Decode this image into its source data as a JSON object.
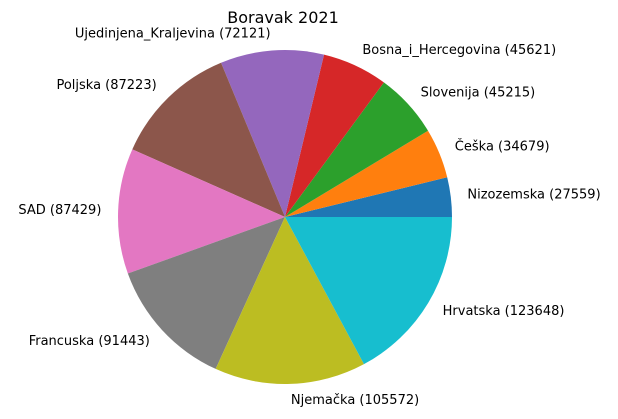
{
  "chart_data": {
    "type": "pie",
    "title": "Boravak 2021",
    "start_angle_deg": 0,
    "direction": "counterclockwise",
    "slices": [
      {
        "label": "Nizozemska (27559)",
        "value": 27559,
        "color": "#1f77b4"
      },
      {
        "label": "Češka (34679)",
        "value": 34679,
        "color": "#ff7f0e"
      },
      {
        "label": "Slovenija (45215)",
        "value": 45215,
        "color": "#2ca02c"
      },
      {
        "label": "Bosna_i_Hercegovina (45621)",
        "value": 45621,
        "color": "#d62728"
      },
      {
        "label": "Ujedinjena_Kraljevina (72121)",
        "value": 72121,
        "color": "#9467bd"
      },
      {
        "label": "Poljska (87223)",
        "value": 87223,
        "color": "#8c564b"
      },
      {
        "label": "SAD (87429)",
        "value": 87429,
        "color": "#e377c2"
      },
      {
        "label": "Francuska (91443)",
        "value": 91443,
        "color": "#7f7f7f"
      },
      {
        "label": "Njemačka (105572)",
        "value": 105572,
        "color": "#bcbd22"
      },
      {
        "label": "Hrvatska (123648)",
        "value": 123648,
        "color": "#17becf"
      }
    ]
  }
}
